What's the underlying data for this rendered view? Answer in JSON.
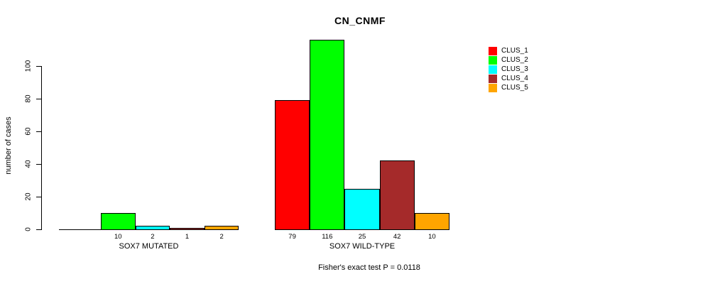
{
  "chart_data": {
    "type": "bar",
    "title": "CN_CNMF",
    "ylabel": "number of cases",
    "xlabel": "",
    "ylim": [
      0,
      116
    ],
    "yticks": [
      0,
      20,
      40,
      60,
      80,
      100
    ],
    "grid": false,
    "legend_position": "top-right",
    "categories": [
      "SOX7 MUTATED",
      "SOX7 WILD-TYPE"
    ],
    "series": [
      {
        "name": "CLUS_1",
        "color": "#FF0000",
        "values": [
          0,
          79
        ]
      },
      {
        "name": "CLUS_2",
        "color": "#00FF00",
        "values": [
          10,
          116
        ]
      },
      {
        "name": "CLUS_3",
        "color": "#00FFFF",
        "values": [
          2,
          25
        ]
      },
      {
        "name": "CLUS_4",
        "color": "#A52A2A",
        "values": [
          1,
          42
        ]
      },
      {
        "name": "CLUS_5",
        "color": "#FFA500",
        "values": [
          2,
          10
        ]
      }
    ],
    "bar_value_labels": [
      [
        "",
        "10",
        "2",
        "1",
        "2"
      ],
      [
        "79",
        "116",
        "25",
        "42",
        "10"
      ]
    ],
    "footnote": "Fisher's exact test P = 0.0118"
  }
}
